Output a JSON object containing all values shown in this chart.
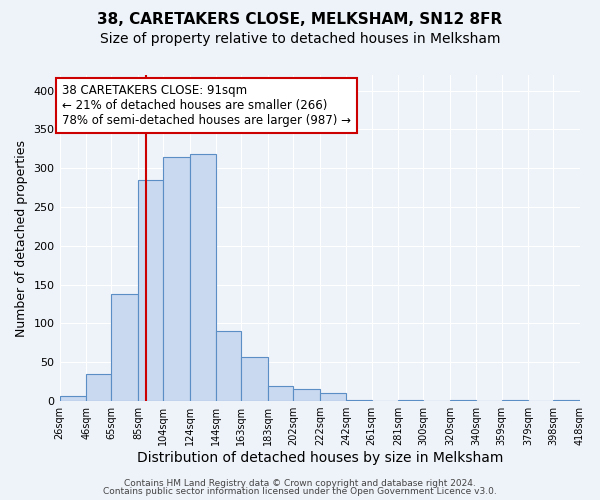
{
  "title": "38, CARETAKERS CLOSE, MELKSHAM, SN12 8FR",
  "subtitle": "Size of property relative to detached houses in Melksham",
  "xlabel": "Distribution of detached houses by size in Melksham",
  "ylabel": "Number of detached properties",
  "bar_edges": [
    26,
    46,
    65,
    85,
    104,
    124,
    144,
    163,
    183,
    202,
    222,
    242,
    261,
    281,
    300,
    320,
    340,
    359,
    379,
    398,
    418
  ],
  "bar_heights": [
    7,
    35,
    138,
    285,
    315,
    318,
    90,
    57,
    20,
    15,
    10,
    2,
    0,
    2,
    0,
    2,
    0,
    2,
    0,
    2
  ],
  "bar_fill_color": "#c9d9f0",
  "bar_edge_color": "#5b8ec4",
  "vline_x": 91,
  "vline_color": "#cc0000",
  "annotation_text": "38 CARETAKERS CLOSE: 91sqm\n← 21% of detached houses are smaller (266)\n78% of semi-detached houses are larger (987) →",
  "annotation_box_color": "#ffffff",
  "annotation_box_edge": "#cc0000",
  "annotation_fontsize": 8.5,
  "ylim": [
    0,
    420
  ],
  "tick_labels": [
    "26sqm",
    "46sqm",
    "65sqm",
    "85sqm",
    "104sqm",
    "124sqm",
    "144sqm",
    "163sqm",
    "183sqm",
    "202sqm",
    "222sqm",
    "242sqm",
    "261sqm",
    "281sqm",
    "300sqm",
    "320sqm",
    "340sqm",
    "359sqm",
    "379sqm",
    "398sqm",
    "418sqm"
  ],
  "background_color": "#eef2f9",
  "grid_color": "#ffffff",
  "footer_line1": "Contains HM Land Registry data © Crown copyright and database right 2024.",
  "footer_line2": "Contains public sector information licensed under the Open Government Licence v3.0.",
  "title_fontsize": 11,
  "subtitle_fontsize": 10,
  "xlabel_fontsize": 10,
  "ylabel_fontsize": 9
}
